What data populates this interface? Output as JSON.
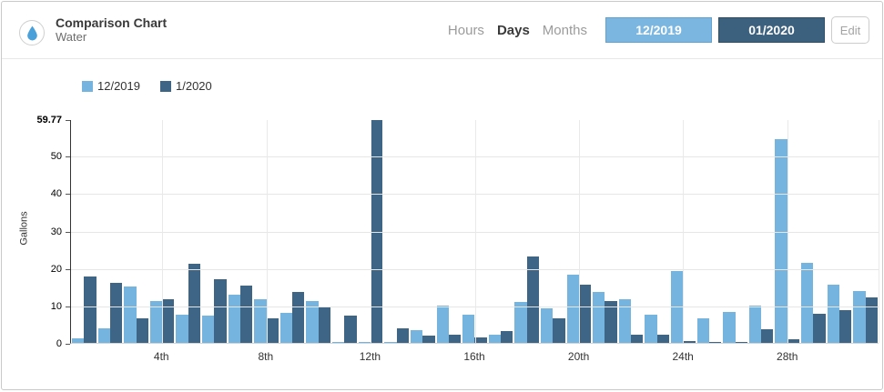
{
  "header": {
    "title": "Comparison Chart",
    "subtitle": "Water",
    "icon": "water-drop-icon",
    "periods": [
      {
        "label": "Hours",
        "active": false
      },
      {
        "label": "Days",
        "active": true
      },
      {
        "label": "Months",
        "active": false
      }
    ],
    "range_buttons": [
      {
        "label": "12/2019",
        "color": "#7ab6e0"
      },
      {
        "label": "01/2020",
        "color": "#3c617f"
      }
    ],
    "edit_label": "Edit"
  },
  "colors": {
    "series_light": "#76b4e0",
    "series_dark": "#3e6585",
    "grid": "#e6e6e6",
    "axis": "#333333",
    "accent_blue": "#4aa0d8"
  },
  "chart_data": {
    "type": "bar",
    "title": "",
    "xlabel": "",
    "ylabel": "Gallons",
    "ylim": [
      0,
      59.77
    ],
    "yticks": [
      0,
      10,
      20,
      30,
      40,
      50,
      59.77
    ],
    "xtick_labels": [
      "4th",
      "8th",
      "12th",
      "16th",
      "20th",
      "24th",
      "28th"
    ],
    "xtick_days": [
      4,
      8,
      12,
      16,
      20,
      24,
      28
    ],
    "categories": [
      1,
      2,
      3,
      4,
      5,
      6,
      7,
      8,
      9,
      10,
      11,
      12,
      13,
      14,
      15,
      16,
      17,
      18,
      19,
      20,
      21,
      22,
      23,
      24,
      25,
      26,
      27,
      28,
      29,
      30,
      31
    ],
    "grid": true,
    "legend_position": "top-left",
    "series": [
      {
        "name": "12/2019",
        "color": "#76b4e0",
        "values": [
          1.3,
          4.0,
          15.2,
          11.2,
          7.5,
          7.4,
          12.9,
          11.7,
          8.0,
          11.2,
          0.2,
          0.3,
          0.2,
          3.4,
          9.9,
          7.5,
          2.2,
          11.0,
          9.3,
          18.2,
          13.6,
          11.7,
          7.5,
          19.3,
          6.6,
          8.3,
          10.1,
          54.6,
          21.4,
          15.6,
          14.0
        ]
      },
      {
        "name": "1/2020",
        "color": "#3e6585",
        "values": [
          17.7,
          16.0,
          6.6,
          11.7,
          21.3,
          17.2,
          15.4,
          6.5,
          13.7,
          9.5,
          7.4,
          59.77,
          4.0,
          1.9,
          2.3,
          1.5,
          3.2,
          23.2,
          6.6,
          15.7,
          11.3,
          2.3,
          2.3,
          0.4,
          0.3,
          0.3,
          3.6,
          1.1,
          7.7,
          8.9,
          12.3
        ]
      }
    ]
  }
}
